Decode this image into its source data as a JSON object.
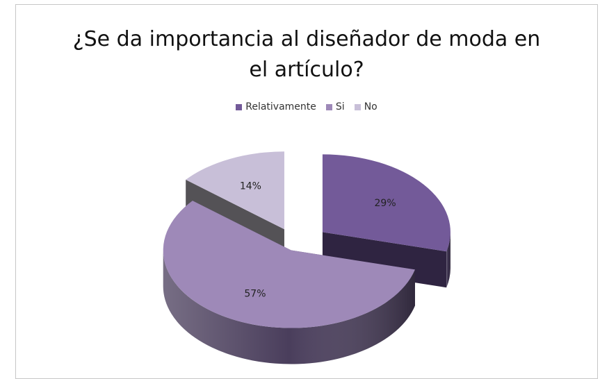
{
  "chart_data": {
    "type": "pie",
    "title_lines": [
      "¿Se da importancia al diseñador de moda en",
      "el artículo?"
    ],
    "legend_position": "top",
    "categories": [
      "Relativamente",
      "Si",
      "No"
    ],
    "values": [
      29,
      57,
      14
    ],
    "data_labels": [
      "29%",
      "57%",
      "14%"
    ],
    "colors": [
      "#735a99",
      "#9e89b8",
      "#c8bfd8"
    ],
    "side_colors": [
      "#2f2441",
      "#4a3e5c",
      "#545256"
    ],
    "style": "3d-exploded"
  }
}
